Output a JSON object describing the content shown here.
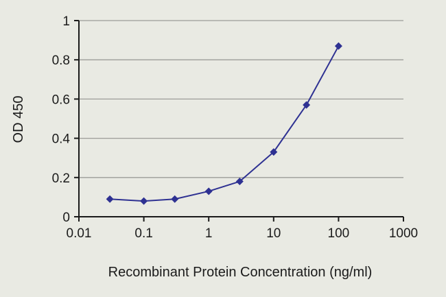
{
  "colors": {
    "background": "#e9eae3",
    "grid": "#9c9c98",
    "axis": "#1a1a1a",
    "text": "#1a1a1a",
    "series": "#2e3192"
  },
  "chart_data": {
    "type": "line",
    "title": "",
    "xlabel": "Recombinant Protein Concentration (ng/ml)",
    "ylabel": "OD 450",
    "x_scale": "log",
    "xlim": [
      0.01,
      1000
    ],
    "ylim": [
      0,
      1
    ],
    "x_ticks": [
      0.01,
      0.1,
      1,
      10,
      100,
      1000
    ],
    "x_tick_labels": [
      "0.01",
      "0.1",
      "1",
      "10",
      "100",
      "1000"
    ],
    "y_ticks": [
      0,
      0.2,
      0.4,
      0.6,
      0.8,
      1
    ],
    "y_tick_labels": [
      "0",
      "0.2",
      "0.4",
      "0.6",
      "0.8",
      "1"
    ],
    "grid": "horizontal",
    "legend": "none",
    "series": [
      {
        "name": "OD 450",
        "marker": "diamond",
        "color": "#2e3192",
        "points": [
          {
            "x": 0.03,
            "y": 0.09
          },
          {
            "x": 0.1,
            "y": 0.08
          },
          {
            "x": 0.3,
            "y": 0.09
          },
          {
            "x": 1,
            "y": 0.13
          },
          {
            "x": 3,
            "y": 0.18
          },
          {
            "x": 10,
            "y": 0.33
          },
          {
            "x": 32,
            "y": 0.57
          },
          {
            "x": 100,
            "y": 0.87
          }
        ]
      }
    ]
  }
}
